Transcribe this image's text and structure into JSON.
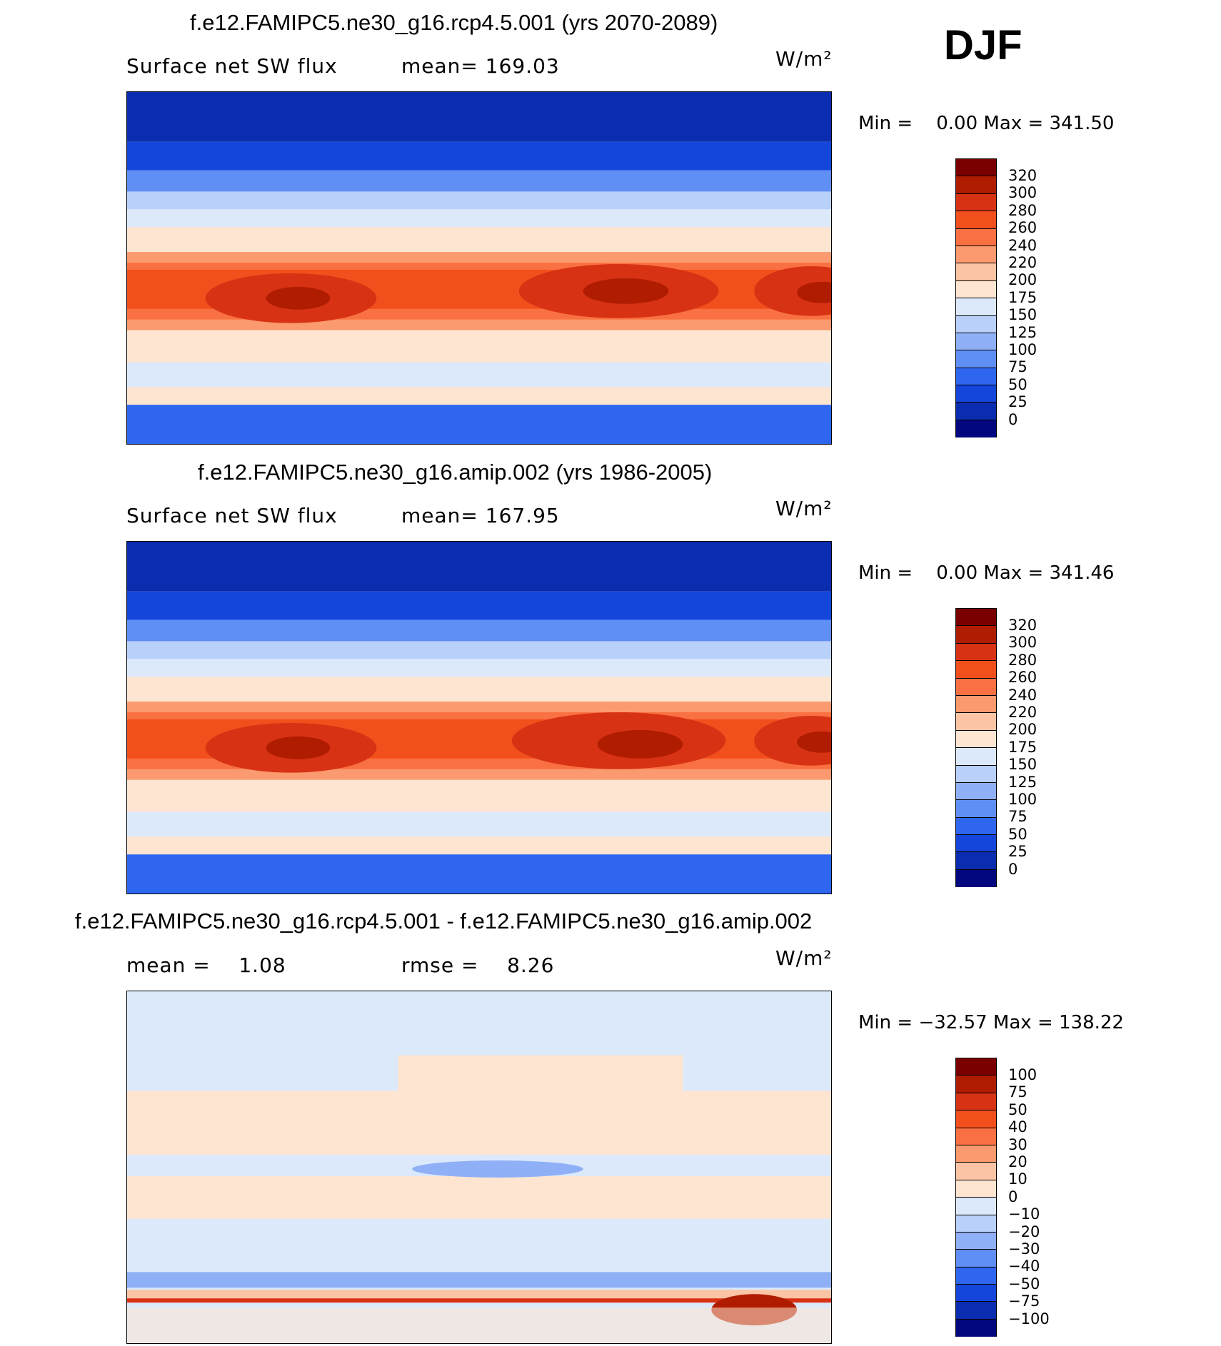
{
  "season": "DJF",
  "panels": [
    {
      "title": "f.e12.FAMIPC5.ne30_g16.rcp4.5.001 (yrs 2070-2089)",
      "left_label": "Surface net SW flux",
      "mid_label": "mean= 169.03",
      "units": "W/m²",
      "minmax": "Min =    0.00 Max = 341.50",
      "levels": [
        "320",
        "300",
        "280",
        "260",
        "240",
        "220",
        "200",
        "175",
        "150",
        "125",
        "100",
        "75",
        "50",
        "25",
        "0"
      ],
      "colors": [
        "#7a0000",
        "#b01c00",
        "#d83214",
        "#f24f1c",
        "#f97142",
        "#fa9a6e",
        "#fbc4a4",
        "#fde5d2",
        "#dce9fb",
        "#b8d0fa",
        "#8fb0f7",
        "#5f8ef5",
        "#2e66f0",
        "#1446dc",
        "#0a2cae",
        "#02077e"
      ]
    },
    {
      "title": "f.e12.FAMIPC5.ne30_g16.amip.002 (yrs 1986-2005)",
      "left_label": "Surface net SW flux",
      "mid_label": "mean= 167.95",
      "units": "W/m²",
      "minmax": "Min =    0.00 Max = 341.46",
      "levels": [
        "320",
        "300",
        "280",
        "260",
        "240",
        "220",
        "200",
        "175",
        "150",
        "125",
        "100",
        "75",
        "50",
        "25",
        "0"
      ],
      "colors": [
        "#7a0000",
        "#b01c00",
        "#d83214",
        "#f24f1c",
        "#f97142",
        "#fa9a6e",
        "#fbc4a4",
        "#fde5d2",
        "#dce9fb",
        "#b8d0fa",
        "#8fb0f7",
        "#5f8ef5",
        "#2e66f0",
        "#1446dc",
        "#0a2cae",
        "#02077e"
      ]
    },
    {
      "title": "f.e12.FAMIPC5.ne30_g16.rcp4.5.001 - f.e12.FAMIPC5.ne30_g16.amip.002",
      "left_label": "mean =    1.08",
      "mid_label": "rmse =    8.26",
      "units": "W/m²",
      "minmax": "Min = −32.57 Max = 138.22",
      "levels": [
        "100",
        "75",
        "50",
        "40",
        "30",
        "20",
        "10",
        "0",
        "−10",
        "−20",
        "−30",
        "−40",
        "−50",
        "−75",
        "−100"
      ],
      "colors": [
        "#7a0000",
        "#b01c00",
        "#d83214",
        "#f24f1c",
        "#f97142",
        "#fa9a6e",
        "#fbc4a4",
        "#fde5d2",
        "#dce9fb",
        "#b8d0fa",
        "#8fb0f7",
        "#5f8ef5",
        "#2e66f0",
        "#1446dc",
        "#0a2cae",
        "#02077e"
      ]
    }
  ]
}
